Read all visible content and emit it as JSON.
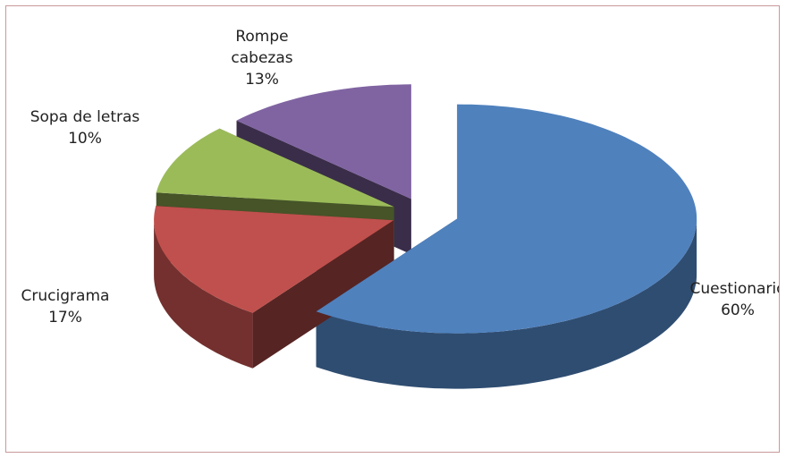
{
  "chart_data": {
    "type": "pie3d",
    "categories": [
      "Cuestionario",
      "Crucigrama",
      "Sopa de letras",
      "Rompe cabezas"
    ],
    "values": [
      60,
      17,
      10,
      13
    ],
    "value_labels": [
      "60%",
      "17%",
      "10%",
      "13%"
    ],
    "colors": [
      "#4f81bd",
      "#c0504d",
      "#9bbb59",
      "#8064a2"
    ]
  }
}
